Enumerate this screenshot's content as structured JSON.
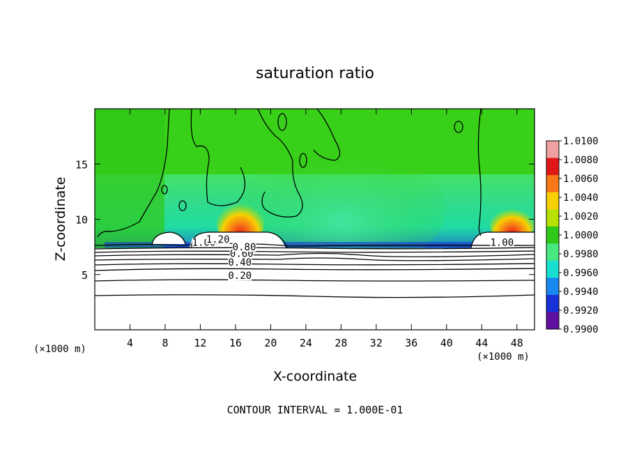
{
  "chart_data": {
    "type": "heatmap",
    "title": "saturation ratio",
    "xlabel": "X-coordinate",
    "ylabel": "Z-coordinate",
    "x_unit_left": "(×1000 m)",
    "x_unit_right": "(×1000 m)",
    "footer": "CONTOUR INTERVAL = 1.000E-01",
    "xlim": [
      0,
      50
    ],
    "ylim": [
      0,
      20
    ],
    "x_ticks": [
      "4",
      "8",
      "12",
      "16",
      "20",
      "24",
      "28",
      "32",
      "36",
      "40",
      "44",
      "48"
    ],
    "x_tick_values": [
      4,
      8,
      12,
      16,
      20,
      24,
      28,
      32,
      36,
      40,
      44,
      48
    ],
    "y_ticks": [
      "5",
      "10",
      "15"
    ],
    "y_tick_values": [
      5,
      10,
      15
    ],
    "colorbar": {
      "range": [
        0.99,
        1.01
      ],
      "labels": [
        "1.0100",
        "1.0080",
        "1.0060",
        "1.0040",
        "1.0020",
        "1.0000",
        "0.9980",
        "0.9960",
        "0.9940",
        "0.9920",
        "0.9900"
      ],
      "colors": [
        "#f0a0a0",
        "#e01818",
        "#f87818",
        "#f8d000",
        "#b8e000",
        "#30c818",
        "#48e880",
        "#18e0d0",
        "#1888f0",
        "#1830d8",
        "#6010a0"
      ]
    },
    "contour_labels": [
      {
        "text": "0.20",
        "x": 16.5,
        "z": 4.6
      },
      {
        "text": "0.40",
        "x": 16.5,
        "z": 5.8
      },
      {
        "text": "0.60",
        "x": 16.7,
        "z": 6.6
      },
      {
        "text": "0.80",
        "x": 17.0,
        "z": 7.2
      },
      {
        "text": "1.00",
        "x": 12.4,
        "z": 7.6
      },
      {
        "text": "1.20",
        "x": 14.0,
        "z": 7.9
      },
      {
        "text": "1.00",
        "x": 46.3,
        "z": 7.6
      }
    ]
  }
}
